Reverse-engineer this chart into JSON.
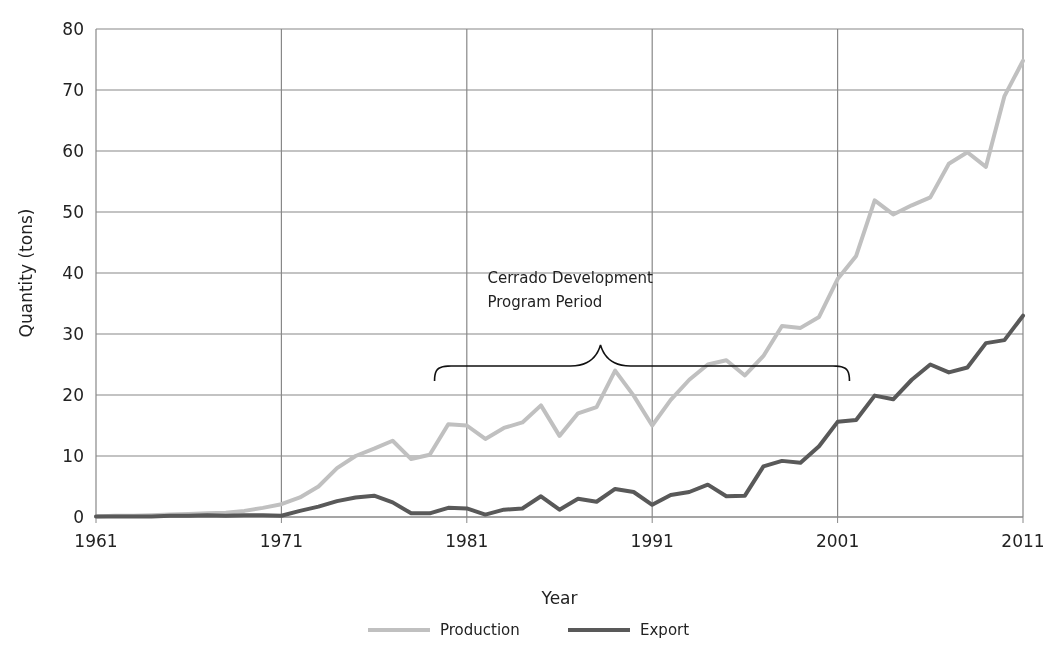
{
  "chart_data": {
    "type": "line",
    "xlabel": "Year",
    "ylabel": "Quantity (tons)",
    "x": [
      1961,
      1962,
      1963,
      1964,
      1965,
      1966,
      1967,
      1968,
      1969,
      1970,
      1971,
      1972,
      1973,
      1974,
      1975,
      1976,
      1977,
      1978,
      1979,
      1980,
      1981,
      1982,
      1983,
      1984,
      1985,
      1986,
      1987,
      1988,
      1989,
      1990,
      1991,
      1992,
      1993,
      1994,
      1995,
      1996,
      1997,
      1998,
      1999,
      2000,
      2001,
      2002,
      2003,
      2004,
      2005,
      2006,
      2007,
      2008,
      2009,
      2010,
      2011
    ],
    "series": [
      {
        "name": "Production",
        "color": "#c0c0c0",
        "values": [
          0.1,
          0.2,
          0.2,
          0.3,
          0.4,
          0.5,
          0.6,
          0.7,
          1.0,
          1.5,
          2.1,
          3.2,
          5.0,
          8.0,
          10.0,
          11.2,
          12.5,
          9.5,
          10.2,
          15.2,
          15.0,
          12.8,
          14.6,
          15.5,
          18.3,
          13.3,
          17.0,
          18.0,
          24.0,
          19.9,
          15.0,
          19.2,
          22.5,
          25.0,
          25.7,
          23.2,
          26.4,
          31.3,
          31.0,
          32.8,
          39.0,
          42.8,
          51.9,
          49.6,
          51.1,
          52.4,
          57.9,
          59.8,
          57.4,
          69.0,
          74.8
        ]
      },
      {
        "name": "Export",
        "color": "#595959",
        "values": [
          0.1,
          0.1,
          0.1,
          0.1,
          0.2,
          0.2,
          0.3,
          0.2,
          0.3,
          0.3,
          0.2,
          1.0,
          1.7,
          2.6,
          3.2,
          3.5,
          2.4,
          0.6,
          0.6,
          1.5,
          1.4,
          0.4,
          1.2,
          1.4,
          3.4,
          1.2,
          3.0,
          2.5,
          4.6,
          4.1,
          2.0,
          3.6,
          4.1,
          5.3,
          3.4,
          3.5,
          8.3,
          9.2,
          8.9,
          11.6,
          15.6,
          15.9,
          19.9,
          19.3,
          22.5,
          25.0,
          23.7,
          24.5,
          28.5,
          29.0,
          33.0
        ]
      }
    ],
    "xlim": [
      1961,
      2011
    ],
    "xticks": [
      1961,
      1971,
      1981,
      1991,
      2001,
      2011
    ],
    "ylim": [
      0,
      80
    ],
    "yticks": [
      0,
      10,
      20,
      30,
      40,
      50,
      60,
      70,
      80
    ],
    "grid": true,
    "legend": "bottom",
    "marker": "none",
    "line_style": "solid",
    "annotations": [
      "Cerrado Development\nProgram Period"
    ]
  }
}
